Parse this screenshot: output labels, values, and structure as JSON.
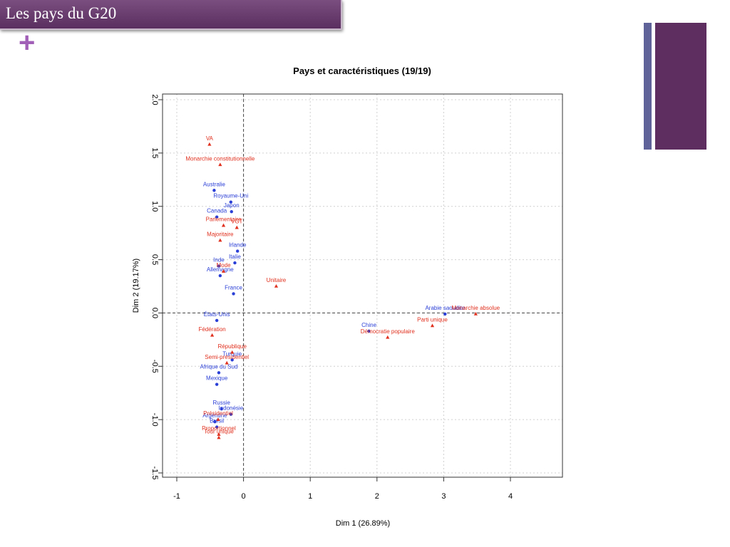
{
  "slide": {
    "title": "Les pays du G20",
    "accent_color": "#5e2e60",
    "secondary_color": "#5f6299"
  },
  "chart_data": {
    "type": "scatter",
    "title": "Pays et caractéristiques (19/19)",
    "xlabel": "Dim 1 (26.89%)",
    "ylabel": "Dim 2 (19.17%)",
    "xlim": [
      -1.0,
      4.0
    ],
    "ylim": [
      -1.5,
      2.0
    ],
    "xticks": [
      -1,
      0,
      1,
      2,
      3,
      4
    ],
    "yticks": [
      -1.5,
      -1.0,
      -0.5,
      0.0,
      0.5,
      1.0,
      1.5,
      2.0
    ],
    "xtick_labels": [
      "-1",
      "0",
      "1",
      "2",
      "3",
      "4"
    ],
    "ytick_labels": [
      "-1.5",
      "-1.0",
      "-0.5",
      "0.0",
      "0.5",
      "1.0",
      "1.5",
      "2.0"
    ],
    "grid": true,
    "series": [
      {
        "marker": "circle",
        "color": "#2a3fd6",
        "points": [
          {
            "label": "Australie",
            "x": -0.44,
            "y": 1.15
          },
          {
            "label": "Royaume-Uni",
            "x": -0.19,
            "y": 1.04
          },
          {
            "label": "Japon",
            "x": -0.18,
            "y": 0.95
          },
          {
            "label": "Canada",
            "x": -0.4,
            "y": 0.9
          },
          {
            "label": "Irlande",
            "x": -0.09,
            "y": 0.58
          },
          {
            "label": "Italie",
            "x": -0.13,
            "y": 0.47
          },
          {
            "label": "Inde",
            "x": -0.37,
            "y": 0.44
          },
          {
            "label": "Allemagne",
            "x": -0.35,
            "y": 0.35
          },
          {
            "label": "France",
            "x": -0.15,
            "y": 0.18
          },
          {
            "label": "États-Unis",
            "x": -0.4,
            "y": -0.07
          },
          {
            "label": "Turquie",
            "x": -0.17,
            "y": -0.44
          },
          {
            "label": "Afrique du Sud",
            "x": -0.37,
            "y": -0.56
          },
          {
            "label": "Mexique",
            "x": -0.4,
            "y": -0.67
          },
          {
            "label": "Russie",
            "x": -0.33,
            "y": -0.9
          },
          {
            "label": "Indonésie",
            "x": -0.19,
            "y": -0.95
          },
          {
            "label": "Argentine",
            "x": -0.43,
            "y": -1.02
          },
          {
            "label": "Brésil",
            "x": -0.4,
            "y": -1.07
          },
          {
            "label": "Chine",
            "x": 1.88,
            "y": -0.17
          },
          {
            "label": "Arabie saoudite",
            "x": 3.02,
            "y": -0.01
          }
        ]
      },
      {
        "marker": "triangle",
        "color": "#e0301e",
        "points": [
          {
            "label": "VA",
            "x": -0.51,
            "y": 1.58
          },
          {
            "label": "Monarchie constitutionnelle",
            "x": -0.35,
            "y": 1.39
          },
          {
            "label": "Parlementaire",
            "x": -0.3,
            "y": 0.82
          },
          {
            "label": "VGT",
            "x": -0.1,
            "y": 0.8
          },
          {
            "label": "Majoritaire",
            "x": -0.35,
            "y": 0.68
          },
          {
            "label": "Mode",
            "x": -0.3,
            "y": 0.39
          },
          {
            "label": "Unitaire",
            "x": 0.49,
            "y": 0.25
          },
          {
            "label": "Fédération",
            "x": -0.47,
            "y": -0.21
          },
          {
            "label": "République",
            "x": -0.17,
            "y": -0.37
          },
          {
            "label": "Semi-présidentiel",
            "x": -0.25,
            "y": -0.47
          },
          {
            "label": "Présidentiel",
            "x": -0.38,
            "y": -1.0
          },
          {
            "label": "Proportionnel",
            "x": -0.37,
            "y": -1.14
          },
          {
            "label": "Tour unique",
            "x": -0.37,
            "y": -1.17
          },
          {
            "label": "Démocratie populaire",
            "x": 2.16,
            "y": -0.23
          },
          {
            "label": "Parti unique",
            "x": 2.83,
            "y": -0.12
          },
          {
            "label": "Monarchie absolue",
            "x": 3.48,
            "y": -0.01
          }
        ]
      }
    ]
  }
}
